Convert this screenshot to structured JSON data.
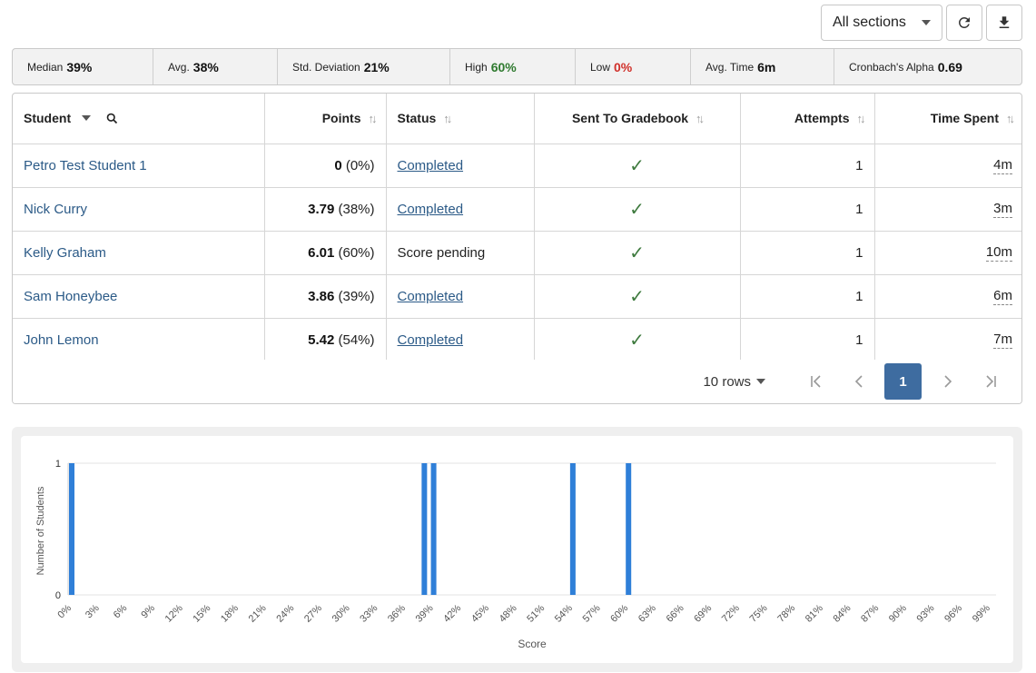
{
  "toolbar": {
    "section_label": "All sections",
    "refresh_icon": "refresh-icon",
    "download_icon": "download-icon"
  },
  "stats": [
    {
      "label": "Median",
      "value": "39%",
      "tone": "normal"
    },
    {
      "label": "Avg.",
      "value": "38%",
      "tone": "normal"
    },
    {
      "label": "Std. Deviation",
      "value": "21%",
      "tone": "normal"
    },
    {
      "label": "High",
      "value": "60%",
      "tone": "green"
    },
    {
      "label": "Low",
      "value": "0%",
      "tone": "red"
    },
    {
      "label": "Avg. Time",
      "value": "6m",
      "tone": "normal"
    },
    {
      "label": "Cronbach's Alpha",
      "value": "0.69",
      "tone": "normal"
    }
  ],
  "table": {
    "headers": {
      "student": "Student",
      "points": "Points",
      "status": "Status",
      "gradebook": "Sent To Gradebook",
      "attempts": "Attempts",
      "time": "Time Spent"
    },
    "rows": [
      {
        "student": "Petro Test Student 1",
        "points": "0",
        "pct": "(0%)",
        "status": "Completed",
        "status_link": true,
        "gradebook": "✓",
        "attempts": "1",
        "time": "4m"
      },
      {
        "student": "Nick Curry",
        "points": "3.79",
        "pct": "(38%)",
        "status": "Completed",
        "status_link": true,
        "gradebook": "✓",
        "attempts": "1",
        "time": "3m"
      },
      {
        "student": "Kelly Graham",
        "points": "6.01",
        "pct": "(60%)",
        "status": "Score pending",
        "status_link": false,
        "gradebook": "✓",
        "attempts": "1",
        "time": "10m"
      },
      {
        "student": "Sam Honeybee",
        "points": "3.86",
        "pct": "(39%)",
        "status": "Completed",
        "status_link": true,
        "gradebook": "✓",
        "attempts": "1",
        "time": "6m"
      },
      {
        "student": "John Lemon",
        "points": "5.42",
        "pct": "(54%)",
        "status": "Completed",
        "status_link": true,
        "gradebook": "✓",
        "attempts": "1",
        "time": "7m"
      }
    ]
  },
  "pager": {
    "rows_label": "10 rows",
    "current_page": "1"
  },
  "chart_data": {
    "type": "bar",
    "xlabel": "Score",
    "ylabel": "Number of Students",
    "ylim": [
      0,
      1
    ],
    "yticks": [
      "0",
      "1"
    ],
    "tick_labels": [
      "0%",
      "3%",
      "6%",
      "9%",
      "12%",
      "15%",
      "18%",
      "21%",
      "24%",
      "27%",
      "30%",
      "33%",
      "36%",
      "39%",
      "42%",
      "45%",
      "48%",
      "51%",
      "54%",
      "57%",
      "60%",
      "63%",
      "66%",
      "69%",
      "72%",
      "75%",
      "78%",
      "81%",
      "84%",
      "87%",
      "90%",
      "93%",
      "96%",
      "99%"
    ],
    "x": [
      0,
      38,
      39,
      54,
      60
    ],
    "values": [
      1,
      1,
      1,
      1,
      1
    ],
    "bar_color": "#2f7fd8",
    "grid": "horizontal"
  }
}
